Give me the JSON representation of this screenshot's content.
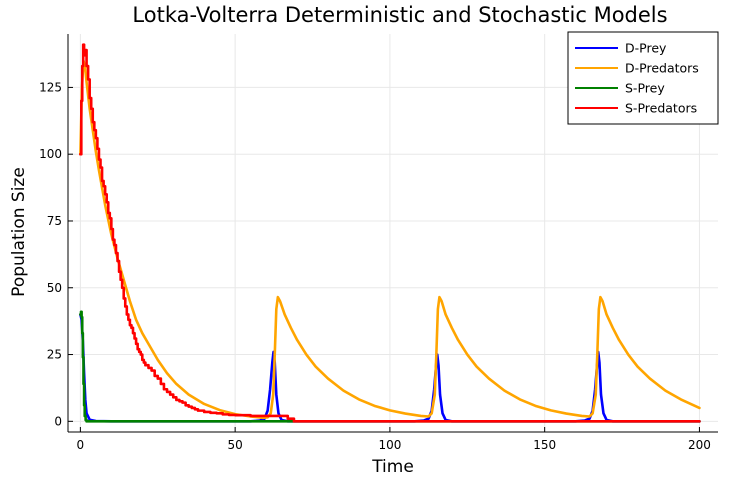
{
  "chart_data": {
    "type": "line",
    "title": "Lotka-Volterra Deterministic and Stochastic Models",
    "xlabel": "Time",
    "ylabel": "Population Size",
    "xlim": [
      -4,
      206
    ],
    "ylim": [
      -4,
      145
    ],
    "x_ticks": [
      0,
      50,
      100,
      150,
      200
    ],
    "y_ticks": [
      0,
      25,
      50,
      75,
      100,
      125
    ],
    "grid": true,
    "legend_position": "top-right",
    "series": [
      {
        "name": "D-Prey",
        "color": "#0000ff",
        "kind": "deterministic-prey",
        "points": [
          [
            0,
            40
          ],
          [
            0.4,
            38
          ],
          [
            0.8,
            30
          ],
          [
            1.2,
            18
          ],
          [
            1.6,
            8
          ],
          [
            2,
            3
          ],
          [
            3,
            0.6
          ],
          [
            5,
            0.1
          ],
          [
            10,
            0
          ],
          [
            55,
            0
          ],
          [
            58,
            0.3
          ],
          [
            59.5,
            1
          ],
          [
            60.5,
            4
          ],
          [
            61.3,
            12
          ],
          [
            62,
            22
          ],
          [
            62.4,
            26
          ],
          [
            62.8,
            22
          ],
          [
            63.3,
            10
          ],
          [
            64,
            3
          ],
          [
            65,
            0.5
          ],
          [
            67,
            0
          ],
          [
            108,
            0
          ],
          [
            111,
            0.3
          ],
          [
            112.5,
            1
          ],
          [
            113.5,
            4
          ],
          [
            114.3,
            12
          ],
          [
            115,
            22
          ],
          [
            115.3,
            25
          ],
          [
            115.7,
            21
          ],
          [
            116.2,
            10
          ],
          [
            117,
            3
          ],
          [
            118,
            0.5
          ],
          [
            120,
            0
          ],
          [
            160,
            0
          ],
          [
            163,
            0.3
          ],
          [
            164.5,
            1
          ],
          [
            165.5,
            4
          ],
          [
            166.3,
            12
          ],
          [
            167,
            22
          ],
          [
            167.3,
            26
          ],
          [
            167.7,
            22
          ],
          [
            168.2,
            10
          ],
          [
            169,
            3
          ],
          [
            170,
            0.5
          ],
          [
            172,
            0
          ],
          [
            200,
            0
          ]
        ]
      },
      {
        "name": "D-Predators",
        "color": "#ffa500",
        "kind": "deterministic-predator",
        "points": [
          [
            0,
            100
          ],
          [
            0.5,
            125
          ],
          [
            1,
            135
          ],
          [
            1.5,
            133
          ],
          [
            2,
            127
          ],
          [
            3,
            117
          ],
          [
            4,
            109
          ],
          [
            5,
            101
          ],
          [
            6,
            94
          ],
          [
            8,
            81
          ],
          [
            10,
            70
          ],
          [
            12,
            61
          ],
          [
            14,
            53
          ],
          [
            16,
            45
          ],
          [
            18,
            38
          ],
          [
            20,
            33
          ],
          [
            22,
            29
          ],
          [
            25,
            23
          ],
          [
            28,
            18
          ],
          [
            31,
            14
          ],
          [
            35,
            10
          ],
          [
            40,
            6.5
          ],
          [
            45,
            4.2
          ],
          [
            50,
            2.7
          ],
          [
            55,
            1.8
          ],
          [
            59,
            1.3
          ],
          [
            60.5,
            1.5
          ],
          [
            61.5,
            3
          ],
          [
            62.3,
            10
          ],
          [
            62.8,
            25
          ],
          [
            63.3,
            42
          ],
          [
            63.8,
            46.5
          ],
          [
            64.5,
            45
          ],
          [
            66,
            40
          ],
          [
            68,
            35
          ],
          [
            70,
            30.5
          ],
          [
            73,
            25
          ],
          [
            76,
            20.5
          ],
          [
            80,
            16
          ],
          [
            85,
            11.5
          ],
          [
            90,
            8.2
          ],
          [
            95,
            5.8
          ],
          [
            100,
            4.1
          ],
          [
            105,
            2.9
          ],
          [
            110,
            2
          ],
          [
            112.5,
            1.8
          ],
          [
            113.5,
            3
          ],
          [
            114.5,
            10
          ],
          [
            115,
            25
          ],
          [
            115.5,
            42
          ],
          [
            116,
            46.5
          ],
          [
            116.7,
            45
          ],
          [
            118,
            40
          ],
          [
            120,
            35
          ],
          [
            122,
            30.5
          ],
          [
            125,
            25
          ],
          [
            128,
            20.5
          ],
          [
            132,
            16
          ],
          [
            137,
            11.5
          ],
          [
            142,
            8.2
          ],
          [
            147,
            5.8
          ],
          [
            152,
            4.1
          ],
          [
            157,
            2.9
          ],
          [
            162,
            2
          ],
          [
            164.5,
            1.8
          ],
          [
            165.5,
            3
          ],
          [
            166.5,
            10
          ],
          [
            167,
            25
          ],
          [
            167.5,
            42
          ],
          [
            168,
            46.5
          ],
          [
            168.7,
            45
          ],
          [
            170,
            40
          ],
          [
            172,
            35
          ],
          [
            174,
            30.5
          ],
          [
            177,
            25
          ],
          [
            180,
            20.5
          ],
          [
            184,
            16
          ],
          [
            189,
            11.5
          ],
          [
            194,
            8.2
          ],
          [
            200,
            5
          ]
        ]
      },
      {
        "name": "S-Prey",
        "color": "#008000",
        "kind": "stochastic-prey",
        "points": [
          [
            0,
            40
          ],
          [
            0.2,
            41
          ],
          [
            0.4,
            39
          ],
          [
            0.6,
            33
          ],
          [
            0.8,
            24
          ],
          [
            1,
            14
          ],
          [
            1.2,
            6
          ],
          [
            1.4,
            2
          ],
          [
            1.7,
            0.5
          ],
          [
            2,
            0
          ],
          [
            200,
            0
          ]
        ]
      },
      {
        "name": "S-Predators",
        "color": "#ff0000",
        "kind": "stochastic-predator",
        "points": [
          [
            0,
            100
          ],
          [
            0.3,
            120
          ],
          [
            0.6,
            133
          ],
          [
            0.9,
            141
          ],
          [
            1.2,
            137
          ],
          [
            1.6,
            139
          ],
          [
            2,
            133
          ],
          [
            2.5,
            128
          ],
          [
            3,
            121
          ],
          [
            3.5,
            117
          ],
          [
            4,
            112
          ],
          [
            4.5,
            109
          ],
          [
            5,
            106
          ],
          [
            5.5,
            102
          ],
          [
            6,
            98
          ],
          [
            6.5,
            95
          ],
          [
            7,
            90
          ],
          [
            7.5,
            88
          ],
          [
            8,
            85
          ],
          [
            8.5,
            82
          ],
          [
            9,
            78
          ],
          [
            9.5,
            76
          ],
          [
            10,
            72
          ],
          [
            10.5,
            68
          ],
          [
            11,
            66
          ],
          [
            11.5,
            63
          ],
          [
            12,
            60
          ],
          [
            12.5,
            56
          ],
          [
            13,
            53
          ],
          [
            13.5,
            50
          ],
          [
            14,
            46
          ],
          [
            14.5,
            43
          ],
          [
            15,
            40
          ],
          [
            15.5,
            38
          ],
          [
            16,
            36
          ],
          [
            16.5,
            35
          ],
          [
            17,
            33
          ],
          [
            17.5,
            31
          ],
          [
            18,
            29
          ],
          [
            18.5,
            27
          ],
          [
            19,
            26
          ],
          [
            19.5,
            25
          ],
          [
            20,
            23
          ],
          [
            20.5,
            22
          ],
          [
            21,
            21
          ],
          [
            22,
            20
          ],
          [
            23,
            19
          ],
          [
            24,
            17
          ],
          [
            25,
            16
          ],
          [
            26,
            14
          ],
          [
            27,
            12
          ],
          [
            28,
            11
          ],
          [
            29,
            10
          ],
          [
            30,
            9
          ],
          [
            31,
            8
          ],
          [
            32,
            7.5
          ],
          [
            33,
            7
          ],
          [
            34,
            6
          ],
          [
            35,
            5.5
          ],
          [
            36,
            5
          ],
          [
            37,
            4.5
          ],
          [
            38,
            4
          ],
          [
            40,
            3.5
          ],
          [
            42,
            3.2
          ],
          [
            44,
            3
          ],
          [
            46,
            2.6
          ],
          [
            48,
            2.4
          ],
          [
            50,
            2.3
          ],
          [
            55,
            2
          ],
          [
            60,
            2
          ],
          [
            62,
            2
          ],
          [
            64,
            2
          ],
          [
            66,
            2
          ],
          [
            67,
            1
          ],
          [
            68,
            1
          ],
          [
            69,
            0
          ],
          [
            200,
            0
          ]
        ]
      }
    ]
  }
}
